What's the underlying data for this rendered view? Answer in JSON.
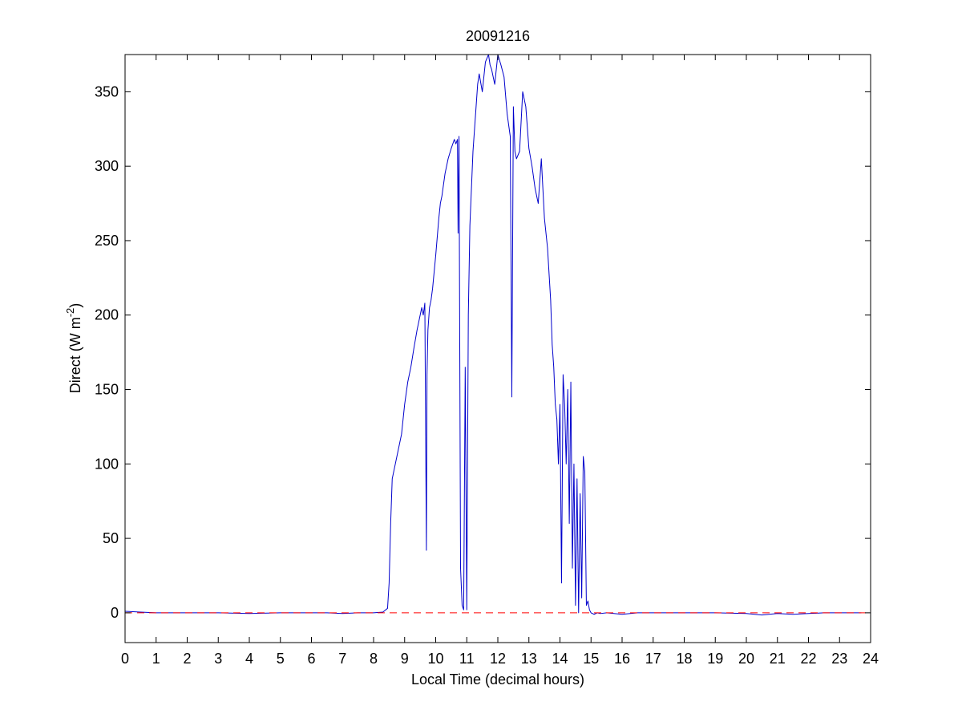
{
  "chart_data": {
    "type": "line",
    "title": "20091216",
    "xlabel": "Local Time (decimal hours)",
    "ylabel": {
      "prefix": "Direct (W m",
      "superscript": "-2",
      "suffix": ")"
    },
    "xlim": [
      0,
      24
    ],
    "ylim": [
      -20,
      375
    ],
    "xticks": [
      0,
      1,
      2,
      3,
      4,
      5,
      6,
      7,
      8,
      9,
      10,
      11,
      12,
      13,
      14,
      15,
      16,
      17,
      18,
      19,
      20,
      21,
      22,
      23,
      24
    ],
    "yticks": [
      0,
      50,
      100,
      150,
      200,
      250,
      300,
      350
    ],
    "grid": false,
    "reference_line": {
      "y": 0,
      "style": "dashed",
      "color": "#ff0000"
    },
    "series": [
      {
        "color": "#0000cc",
        "x": [
          0,
          0.5,
          1.0,
          2.0,
          3.0,
          4.0,
          5.0,
          6.0,
          6.5,
          7.0,
          7.5,
          8.0,
          8.3,
          8.45,
          8.5,
          8.55,
          8.6,
          8.7,
          8.8,
          8.9,
          9.0,
          9.1,
          9.2,
          9.3,
          9.4,
          9.5,
          9.55,
          9.6,
          9.65,
          9.7,
          9.72,
          9.75,
          9.8,
          9.85,
          9.9,
          10.0,
          10.1,
          10.15,
          10.2,
          10.3,
          10.4,
          10.5,
          10.6,
          10.65,
          10.7,
          10.72,
          10.75,
          10.8,
          10.85,
          10.9,
          10.95,
          11.0,
          11.05,
          11.1,
          11.2,
          11.3,
          11.35,
          11.4,
          11.5,
          11.6,
          11.7,
          11.75,
          11.8,
          11.9,
          12.0,
          12.1,
          12.2,
          12.3,
          12.4,
          12.45,
          12.5,
          12.55,
          12.6,
          12.7,
          12.8,
          12.9,
          13.0,
          13.1,
          13.2,
          13.3,
          13.4,
          13.5,
          13.6,
          13.7,
          13.75,
          13.8,
          13.85,
          13.9,
          13.95,
          14.0,
          14.05,
          14.1,
          14.15,
          14.2,
          14.25,
          14.3,
          14.35,
          14.4,
          14.45,
          14.5,
          14.55,
          14.6,
          14.65,
          14.7,
          14.75,
          14.8,
          14.85,
          14.9,
          14.95,
          15.0,
          15.1,
          15.2,
          15.3,
          15.5,
          16.0,
          16.5,
          17.0,
          18.0,
          19.0,
          20.0,
          20.5,
          21.0,
          21.5,
          22.0,
          22.5,
          23.0,
          23.5,
          23.7
        ],
        "y": [
          1,
          0.5,
          0,
          0,
          0,
          -0.5,
          0,
          0,
          0,
          -0.5,
          0,
          0,
          0.5,
          3,
          20,
          60,
          90,
          100,
          110,
          120,
          140,
          155,
          165,
          178,
          190,
          200,
          205,
          200,
          208,
          42,
          160,
          190,
          205,
          210,
          218,
          240,
          265,
          275,
          280,
          295,
          305,
          312,
          318,
          315,
          318,
          255,
          320,
          30,
          5,
          2,
          165,
          2,
          200,
          260,
          310,
          340,
          355,
          362,
          350,
          370,
          375,
          368,
          365,
          355,
          375,
          368,
          360,
          335,
          320,
          145,
          340,
          310,
          305,
          310,
          350,
          340,
          312,
          300,
          285,
          275,
          305,
          265,
          245,
          210,
          180,
          165,
          140,
          130,
          100,
          140,
          20,
          160,
          140,
          100,
          150,
          60,
          155,
          30,
          100,
          5,
          90,
          0,
          80,
          10,
          105,
          95,
          5,
          8,
          2,
          0,
          -1,
          0,
          -0.5,
          0,
          -1,
          0,
          0,
          0,
          0,
          -0.5,
          -1.5,
          -0.5,
          -1,
          -0.5,
          0,
          0,
          0,
          0
        ]
      }
    ]
  }
}
